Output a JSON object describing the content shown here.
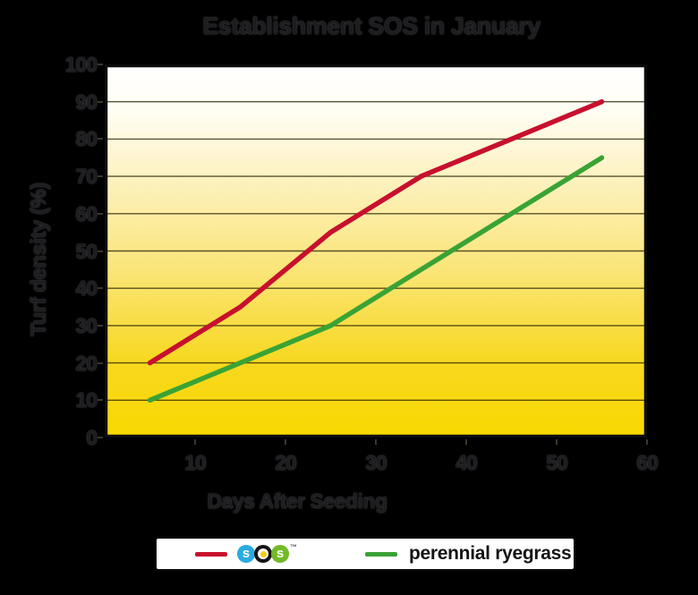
{
  "page": {
    "background": "#000000"
  },
  "chart_data": {
    "type": "line",
    "title": "Establishment SOS in January",
    "xlabel": "Days After Seeding",
    "ylabel": "Turf density (%)",
    "xlim": [
      0,
      60
    ],
    "ylim": [
      0,
      100
    ],
    "xticks": [
      10,
      20,
      30,
      40,
      50,
      60
    ],
    "yticks": [
      0,
      10,
      20,
      30,
      40,
      50,
      60,
      70,
      80,
      90,
      100
    ],
    "grid": "horizontal",
    "legend_position": "bottom",
    "plot_background": {
      "type": "vertical-gradient",
      "top": "#ffffff",
      "bottom": "#f9d900"
    },
    "series": [
      {
        "name": "SOS",
        "color": "#c8102e",
        "x": [
          5,
          15,
          25,
          35,
          45,
          55
        ],
        "y": [
          20,
          35,
          55,
          70,
          80,
          90
        ]
      },
      {
        "name": "perennial ryegrass",
        "color": "#3aa335",
        "x": [
          5,
          15,
          25,
          35,
          45,
          55
        ],
        "y": [
          10,
          20,
          30,
          45,
          60,
          75
        ]
      }
    ]
  },
  "legend": {
    "sos_logo": {
      "letters": [
        "s",
        "o",
        "s"
      ],
      "trademark": "™",
      "colors": {
        "s1_bg": "#29abe2",
        "o_bg": "#141414",
        "o_dot": "#f2cf13",
        "s2_bg": "#72b927"
      }
    },
    "ryegrass_label": "perennial ryegrass"
  }
}
